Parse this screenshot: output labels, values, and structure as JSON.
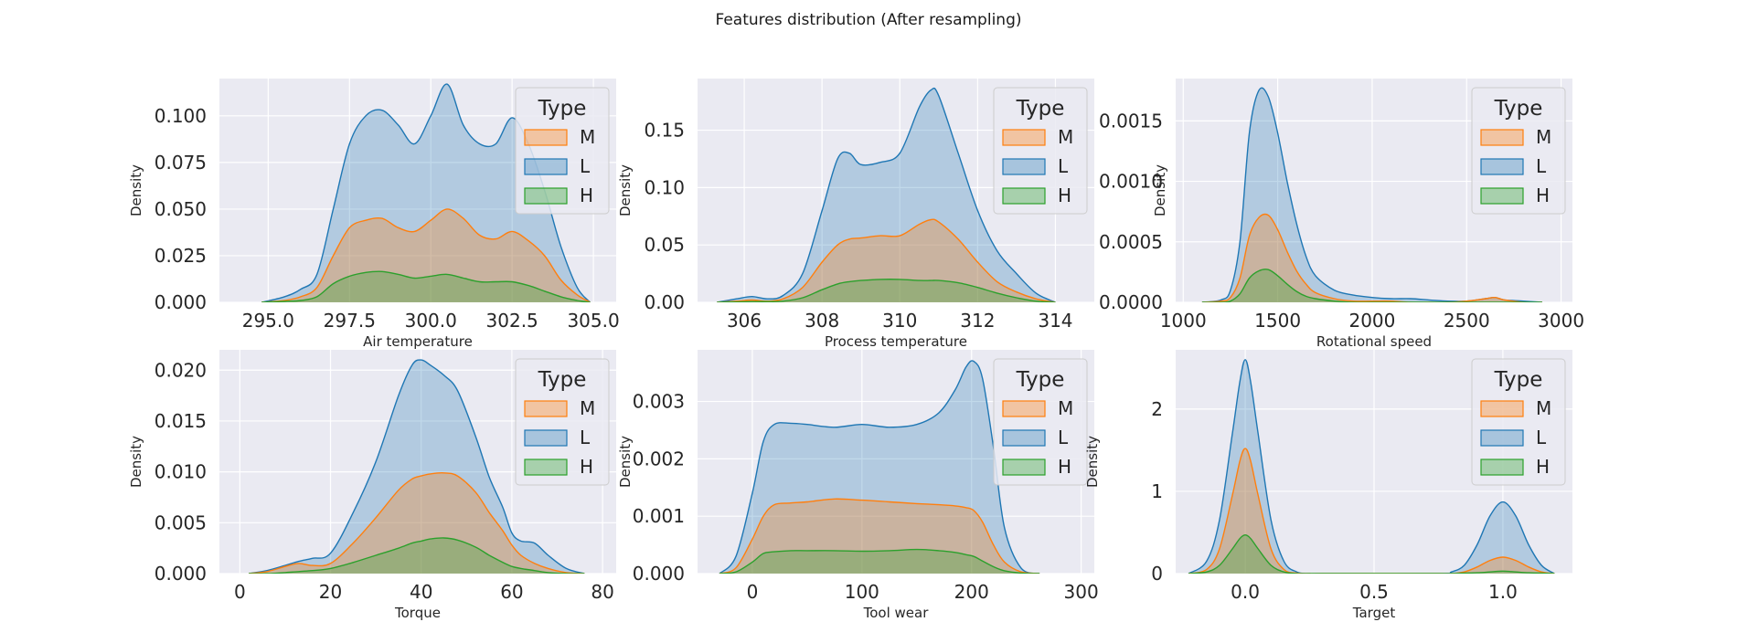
{
  "title": "Features distribution (After resampling)",
  "colors": {
    "M": "#ff7f0e",
    "L": "#1f77b4",
    "H": "#2ca02c",
    "background": "#eaeaf2",
    "grid": "#ffffff",
    "legend_edge": "#cccccc"
  },
  "legend": {
    "title": "Type",
    "entries": [
      "M",
      "L",
      "H"
    ]
  },
  "chart_data": [
    {
      "type": "area",
      "xlabel": "Air temperature",
      "ylabel": "Density",
      "xlim": [
        293.5,
        305.7
      ],
      "ylim": [
        0,
        0.12
      ],
      "xticks": [
        295.0,
        297.5,
        300.0,
        302.5,
        305.0
      ],
      "xtick_labels": [
        "295.0",
        "297.5",
        "300.0",
        "302.5",
        "305.0"
      ],
      "yticks": [
        0,
        0.025,
        0.05,
        0.075,
        0.1
      ],
      "ytick_labels": [
        "0.000",
        "0.025",
        "0.050",
        "0.075",
        "0.100"
      ],
      "grid": true,
      "legend_position": "top-right",
      "x": [
        294.8,
        295.5,
        296.0,
        296.5,
        297.0,
        297.5,
        298.0,
        298.5,
        299.0,
        299.5,
        300.0,
        300.5,
        301.0,
        301.5,
        302.0,
        302.5,
        303.0,
        303.5,
        304.0,
        304.5,
        304.9
      ],
      "series": [
        {
          "name": "L",
          "values": [
            0.0,
            0.003,
            0.007,
            0.015,
            0.05,
            0.085,
            0.1,
            0.103,
            0.095,
            0.085,
            0.1,
            0.117,
            0.095,
            0.085,
            0.085,
            0.099,
            0.085,
            0.06,
            0.03,
            0.008,
            0.0
          ]
        },
        {
          "name": "M",
          "values": [
            0.0,
            0.001,
            0.003,
            0.008,
            0.025,
            0.04,
            0.044,
            0.045,
            0.04,
            0.038,
            0.044,
            0.05,
            0.045,
            0.036,
            0.034,
            0.038,
            0.033,
            0.025,
            0.012,
            0.004,
            0.0
          ]
        },
        {
          "name": "H",
          "values": [
            0.0,
            0.0005,
            0.001,
            0.003,
            0.01,
            0.014,
            0.016,
            0.0165,
            0.015,
            0.013,
            0.014,
            0.015,
            0.013,
            0.011,
            0.011,
            0.011,
            0.009,
            0.006,
            0.003,
            0.001,
            0.0
          ]
        }
      ]
    },
    {
      "type": "area",
      "xlabel": "Process temperature",
      "ylabel": "Density",
      "xlim": [
        304.8,
        315.0
      ],
      "ylim": [
        0,
        0.195
      ],
      "xticks": [
        306,
        308,
        310,
        312,
        314
      ],
      "xtick_labels": [
        "306",
        "308",
        "310",
        "312",
        "314"
      ],
      "yticks": [
        0,
        0.05,
        0.1,
        0.15
      ],
      "ytick_labels": [
        "0.00",
        "0.05",
        "0.10",
        "0.15"
      ],
      "grid": true,
      "legend_position": "top-right",
      "x": [
        305.3,
        305.8,
        306.2,
        306.6,
        307.0,
        307.5,
        308.0,
        308.4,
        308.7,
        309.0,
        309.5,
        310.0,
        310.5,
        310.8,
        311.0,
        311.5,
        312.0,
        312.5,
        313.0,
        313.5,
        314.0
      ],
      "series": [
        {
          "name": "L",
          "values": [
            0.0,
            0.003,
            0.005,
            0.003,
            0.006,
            0.025,
            0.08,
            0.125,
            0.13,
            0.12,
            0.122,
            0.13,
            0.17,
            0.185,
            0.18,
            0.13,
            0.08,
            0.045,
            0.025,
            0.008,
            0.0
          ]
        },
        {
          "name": "M",
          "values": [
            0.0,
            0.001,
            0.002,
            0.001,
            0.003,
            0.013,
            0.035,
            0.05,
            0.055,
            0.056,
            0.058,
            0.058,
            0.068,
            0.072,
            0.07,
            0.055,
            0.035,
            0.018,
            0.009,
            0.003,
            0.0
          ]
        },
        {
          "name": "H",
          "values": [
            0.0,
            0.0003,
            0.0006,
            0.0006,
            0.001,
            0.004,
            0.011,
            0.016,
            0.018,
            0.019,
            0.02,
            0.02,
            0.019,
            0.019,
            0.019,
            0.017,
            0.013,
            0.008,
            0.004,
            0.001,
            0.0
          ]
        }
      ]
    },
    {
      "type": "area",
      "xlabel": "Rotational speed",
      "ylabel": "Density",
      "xlim": [
        960,
        3060
      ],
      "ylim": [
        0,
        0.00185
      ],
      "xticks": [
        1000,
        1500,
        2000,
        2500,
        3000
      ],
      "xtick_labels": [
        "1000",
        "1500",
        "2000",
        "2500",
        "3000"
      ],
      "yticks": [
        0,
        0.0005,
        0.001,
        0.0015
      ],
      "ytick_labels": [
        "0.0000",
        "0.0005",
        "0.0010",
        "0.0015"
      ],
      "grid": true,
      "legend_position": "top-right",
      "x": [
        1100,
        1200,
        1250,
        1300,
        1350,
        1400,
        1450,
        1500,
        1550,
        1600,
        1650,
        1700,
        1800,
        1900,
        2000,
        2100,
        2200,
        2300,
        2400,
        2500,
        2600,
        2650,
        2700,
        2800,
        2900
      ],
      "series": [
        {
          "name": "L",
          "values": [
            0.0,
            2e-05,
            0.0001,
            0.0005,
            0.0014,
            0.00175,
            0.0017,
            0.0014,
            0.001,
            0.00065,
            0.00038,
            0.00022,
            0.0001,
            6e-05,
            4e-05,
            3e-05,
            3e-05,
            2e-05,
            1e-05,
            1e-05,
            3e-05,
            4e-05,
            2e-05,
            1e-05,
            0.0
          ]
        },
        {
          "name": "M",
          "values": [
            0.0,
            1e-05,
            4e-05,
            0.0002,
            0.00055,
            0.0007,
            0.00072,
            0.0006,
            0.00042,
            0.00026,
            0.00015,
            8e-05,
            3e-05,
            1e-05,
            1e-05,
            1e-05,
            0.0,
            0.0,
            0.0,
            1e-05,
            3e-05,
            4e-05,
            2e-05,
            0.0,
            0.0
          ]
        },
        {
          "name": "H",
          "values": [
            0.0,
            0.0,
            1e-05,
            7e-05,
            0.0002,
            0.00026,
            0.00027,
            0.00022,
            0.00015,
            9e-05,
            5e-05,
            3e-05,
            1e-05,
            0.0,
            0.0,
            0.0,
            0.0,
            0.0,
            0.0,
            0.0,
            0.0,
            0.0,
            0.0,
            0.0,
            0.0
          ]
        }
      ]
    },
    {
      "type": "area",
      "xlabel": "Torque",
      "ylabel": "Density",
      "xlim": [
        -4.5,
        83
      ],
      "ylim": [
        0,
        0.022
      ],
      "xticks": [
        0,
        20,
        40,
        60,
        80
      ],
      "xtick_labels": [
        "0",
        "20",
        "40",
        "60",
        "80"
      ],
      "yticks": [
        0,
        0.005,
        0.01,
        0.015,
        0.02
      ],
      "ytick_labels": [
        "0.000",
        "0.005",
        "0.010",
        "0.015",
        "0.020"
      ],
      "grid": true,
      "legend_position": "top-right",
      "x": [
        2,
        6,
        10,
        13,
        16,
        20,
        25,
        30,
        35,
        38,
        40,
        42,
        45,
        48,
        52,
        55,
        58,
        60,
        62,
        65,
        68,
        72,
        76
      ],
      "series": [
        {
          "name": "L",
          "values": [
            0.0,
            0.0003,
            0.0008,
            0.0012,
            0.0015,
            0.002,
            0.006,
            0.011,
            0.0175,
            0.0205,
            0.021,
            0.0205,
            0.0195,
            0.018,
            0.0135,
            0.0095,
            0.0065,
            0.004,
            0.0032,
            0.003,
            0.0018,
            0.0005,
            0.0
          ]
        },
        {
          "name": "M",
          "values": [
            0.0,
            0.0002,
            0.0007,
            0.001,
            0.0008,
            0.001,
            0.003,
            0.0055,
            0.0082,
            0.0093,
            0.0096,
            0.0098,
            0.0099,
            0.0096,
            0.008,
            0.006,
            0.0042,
            0.0028,
            0.0018,
            0.001,
            0.0005,
            0.0001,
            0.0
          ]
        },
        {
          "name": "H",
          "values": [
            0.0,
            0.0,
            0.0001,
            0.0002,
            0.0003,
            0.0005,
            0.0011,
            0.0018,
            0.0025,
            0.003,
            0.0032,
            0.0034,
            0.0035,
            0.0033,
            0.0026,
            0.0018,
            0.0011,
            0.0007,
            0.0005,
            0.0003,
            0.0001,
            0.0,
            0.0
          ]
        }
      ]
    },
    {
      "type": "area",
      "xlabel": "Tool wear",
      "ylabel": "Density",
      "xlim": [
        -50,
        312
      ],
      "ylim": [
        0,
        0.0039
      ],
      "xticks": [
        0,
        100,
        200,
        300
      ],
      "xtick_labels": [
        "0",
        "100",
        "200",
        "300"
      ],
      "yticks": [
        0,
        0.001,
        0.002,
        0.003
      ],
      "ytick_labels": [
        "0.000",
        "0.001",
        "0.002",
        "0.003"
      ],
      "grid": true,
      "legend_position": "top-right",
      "x": [
        -30,
        -15,
        0,
        10,
        20,
        35,
        50,
        75,
        100,
        125,
        150,
        170,
        185,
        195,
        202,
        210,
        220,
        230,
        245,
        262
      ],
      "series": [
        {
          "name": "L",
          "values": [
            0.0,
            0.0003,
            0.0014,
            0.0023,
            0.0026,
            0.00262,
            0.0026,
            0.00255,
            0.0026,
            0.00255,
            0.0026,
            0.0028,
            0.0032,
            0.0036,
            0.0037,
            0.0034,
            0.0022,
            0.0008,
            0.0001,
            0.0
          ]
        },
        {
          "name": "M",
          "values": [
            0.0,
            0.0001,
            0.0006,
            0.001,
            0.0012,
            0.00123,
            0.00125,
            0.0013,
            0.00128,
            0.00125,
            0.00122,
            0.0012,
            0.00118,
            0.00115,
            0.0011,
            0.0009,
            0.0005,
            0.0002,
            3e-05,
            0.0
          ]
        },
        {
          "name": "H",
          "values": [
            0.0,
            3e-05,
            0.0002,
            0.00035,
            0.00038,
            0.0004,
            0.0004,
            0.0004,
            0.00039,
            0.0004,
            0.00042,
            0.0004,
            0.00037,
            0.00033,
            0.0003,
            0.00022,
            0.00012,
            5e-05,
            1e-05,
            0.0
          ]
        }
      ]
    },
    {
      "type": "area",
      "xlabel": "Target",
      "ylabel": "Density",
      "xlim": [
        -0.27,
        1.27
      ],
      "ylim": [
        0,
        2.72
      ],
      "xticks": [
        0.0,
        0.5,
        1.0
      ],
      "xtick_labels": [
        "0.0",
        "0.5",
        "1.0"
      ],
      "yticks": [
        0,
        1,
        2
      ],
      "ytick_labels": [
        "0",
        "1",
        "2"
      ],
      "grid": true,
      "legend_position": "top-right",
      "x": [
        -0.22,
        -0.15,
        -0.1,
        -0.05,
        -0.02,
        0.0,
        0.02,
        0.05,
        0.1,
        0.15,
        0.2,
        0.25,
        0.3,
        0.75,
        0.8,
        0.85,
        0.9,
        0.95,
        1.0,
        1.05,
        1.1,
        1.15,
        1.2
      ],
      "series": [
        {
          "name": "L",
          "values": [
            0.0,
            0.15,
            0.65,
            1.7,
            2.35,
            2.6,
            2.35,
            1.7,
            0.65,
            0.15,
            0.02,
            0.0,
            0.0,
            0.0,
            0.02,
            0.1,
            0.35,
            0.7,
            0.87,
            0.7,
            0.35,
            0.1,
            0.0
          ]
        },
        {
          "name": "M",
          "values": [
            0.0,
            0.05,
            0.3,
            0.95,
            1.38,
            1.52,
            1.38,
            0.95,
            0.3,
            0.05,
            0.005,
            0.0,
            0.0,
            0.0,
            0.0,
            0.02,
            0.08,
            0.16,
            0.2,
            0.16,
            0.08,
            0.02,
            0.0
          ]
        },
        {
          "name": "H",
          "values": [
            0.0,
            0.02,
            0.1,
            0.3,
            0.43,
            0.47,
            0.43,
            0.3,
            0.1,
            0.02,
            0.0,
            0.0,
            0.0,
            0.0,
            0.0,
            0.005,
            0.01,
            0.02,
            0.03,
            0.02,
            0.01,
            0.005,
            0.0
          ]
        }
      ]
    }
  ]
}
